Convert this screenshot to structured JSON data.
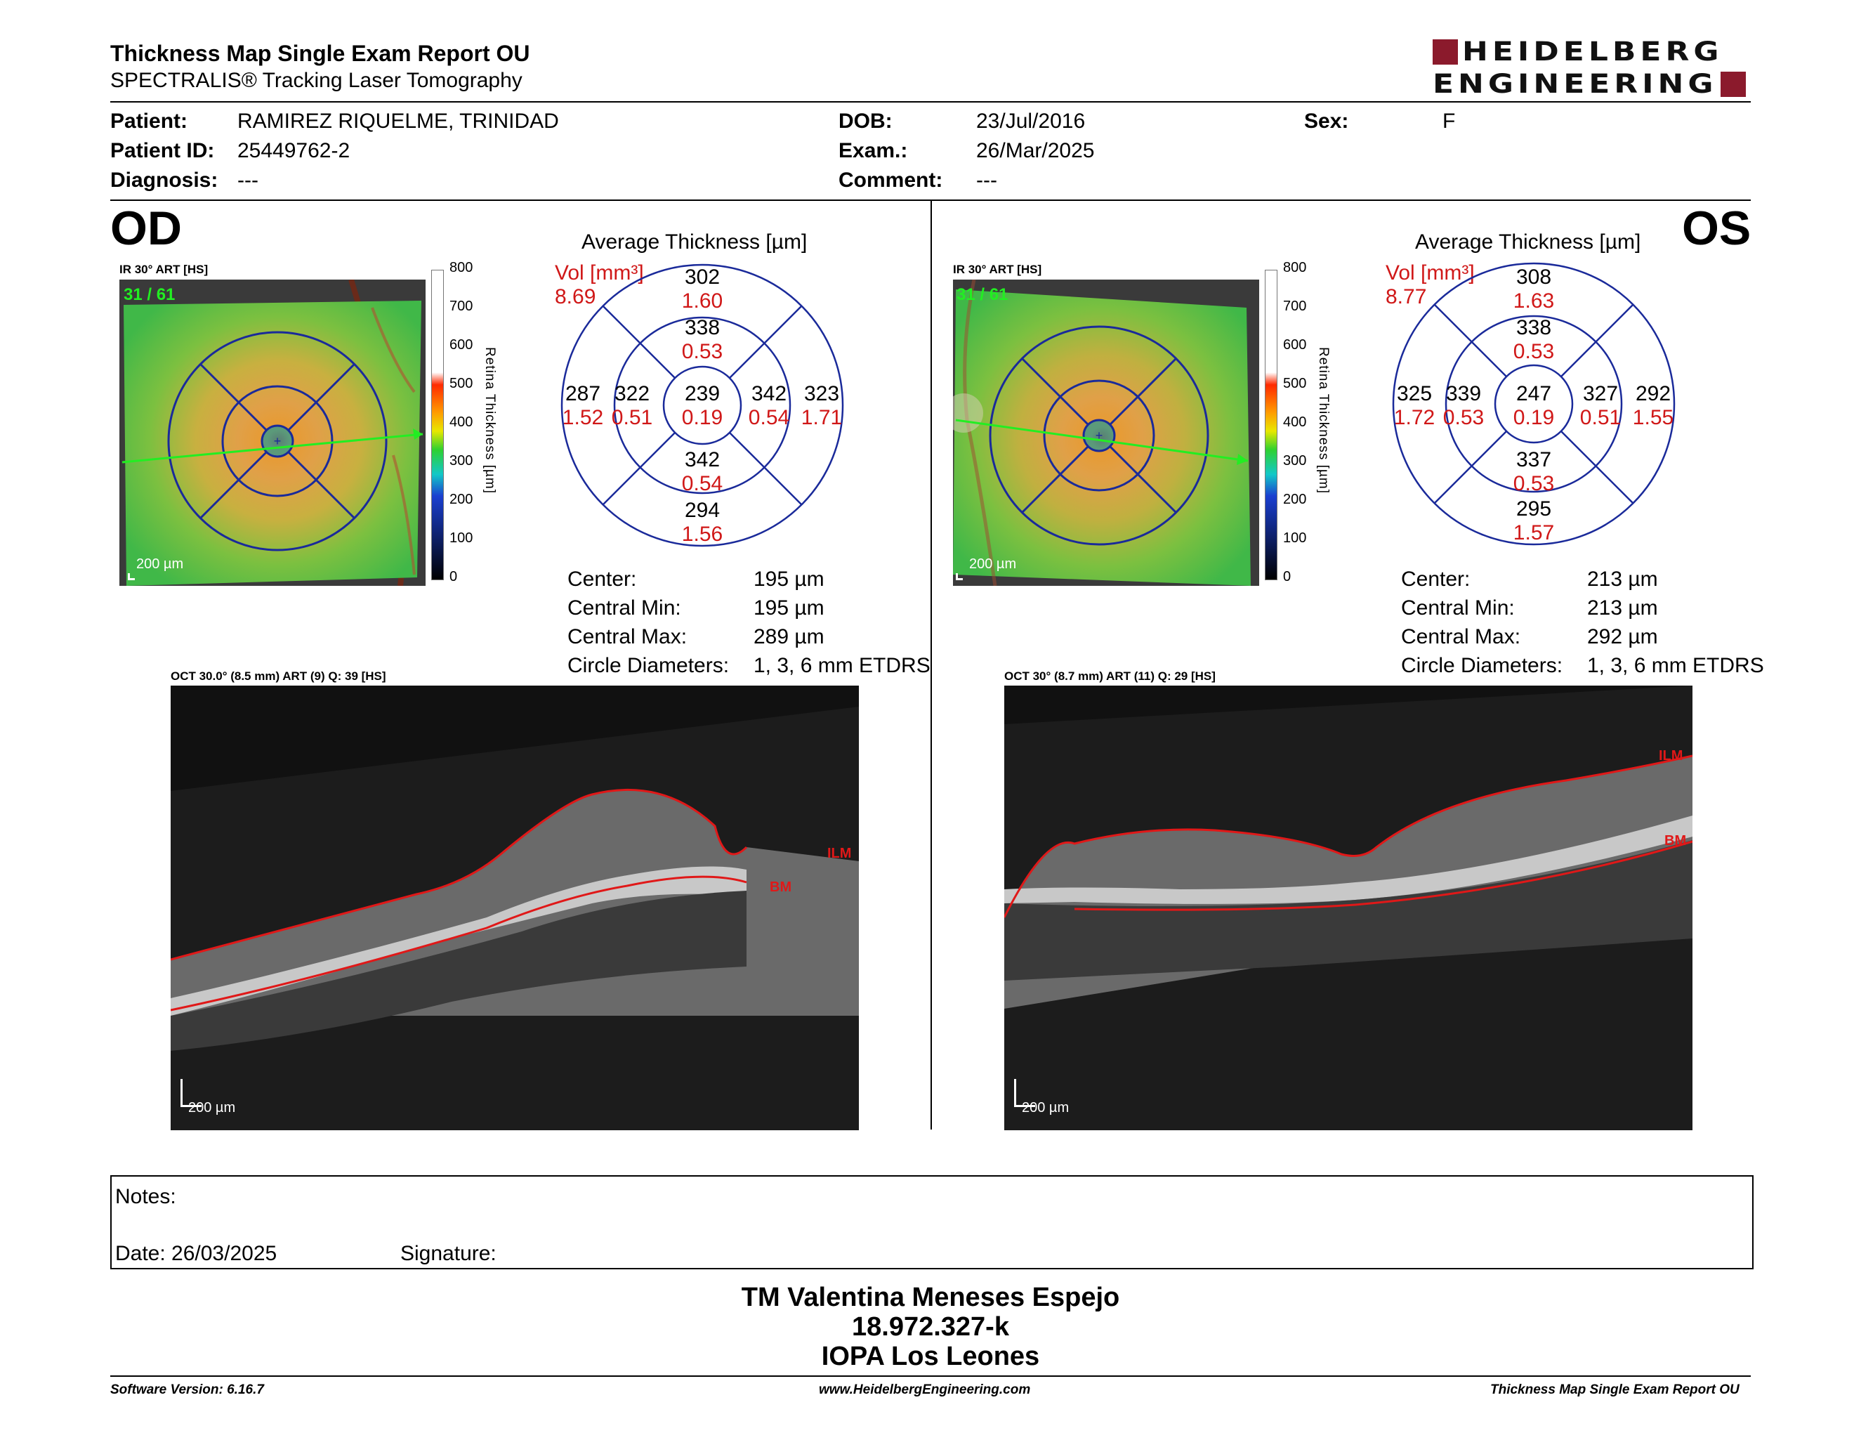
{
  "header": {
    "title": "Thickness Map Single Exam Report OU",
    "subtitle": "SPECTRALIS® Tracking Laser Tomography",
    "logo_line1": "HEIDELBERG",
    "logo_line2": "ENGINEERING"
  },
  "patient": {
    "patient_label": "Patient:",
    "patient_value": "RAMIREZ RIQUELME, TRINIDAD",
    "id_label": "Patient ID:",
    "id_value": "25449762-2",
    "diag_label": "Diagnosis:",
    "diag_value": "---",
    "dob_label": "DOB:",
    "dob_value": "23/Jul/2016",
    "exam_label": "Exam.:",
    "exam_value": "26/Mar/2025",
    "comment_label": "Comment:",
    "comment_value": "---",
    "sex_label": "Sex:",
    "sex_value": "F"
  },
  "od": {
    "eye": "OD",
    "ir_label": "IR 30° ART [HS]",
    "frame": "31 / 61",
    "scale_bar": "200 µm",
    "avg_title": "Average Thickness [µm]",
    "vol_label": "Vol [mm³]",
    "vol_value": "8.69",
    "sectors": {
      "superior_outer": [
        "302",
        "1.60"
      ],
      "superior_inner": [
        "338",
        "0.53"
      ],
      "center": [
        "239",
        "0.19"
      ],
      "temporal_outer": [
        "287",
        "1.52"
      ],
      "temporal_inner": [
        "322",
        "0.51"
      ],
      "nasal_inner": [
        "342",
        "0.54"
      ],
      "nasal_outer": [
        "323",
        "1.71"
      ],
      "inferior_inner": [
        "342",
        "0.54"
      ],
      "inferior_outer": [
        "294",
        "1.56"
      ]
    },
    "stats": [
      {
        "label": "Center:",
        "value": "195 µm"
      },
      {
        "label": "Central Min:",
        "value": "195 µm"
      },
      {
        "label": "Central Max:",
        "value": "289 µm"
      },
      {
        "label": "Circle Diameters:",
        "value": "1, 3, 6 mm ETDRS"
      }
    ],
    "oct_label": "OCT 30.0° (8.5 mm) ART (9) Q: 39 [HS]",
    "oct_scale": "200 µm",
    "ilm": "ILM",
    "bm": "BM"
  },
  "os": {
    "eye": "OS",
    "ir_label": "IR 30° ART [HS]",
    "frame": "31 / 61",
    "scale_bar": "200 µm",
    "avg_title": "Average Thickness [µm]",
    "vol_label": "Vol [mm³]",
    "vol_value": "8.77",
    "sectors": {
      "superior_outer": [
        "308",
        "1.63"
      ],
      "superior_inner": [
        "338",
        "0.53"
      ],
      "center": [
        "247",
        "0.19"
      ],
      "nasal_outer": [
        "325",
        "1.72"
      ],
      "nasal_inner": [
        "339",
        "0.53"
      ],
      "temporal_inner": [
        "327",
        "0.51"
      ],
      "temporal_outer": [
        "292",
        "1.55"
      ],
      "inferior_inner": [
        "337",
        "0.53"
      ],
      "inferior_outer": [
        "295",
        "1.57"
      ]
    },
    "stats": [
      {
        "label": "Center:",
        "value": "213 µm"
      },
      {
        "label": "Central Min:",
        "value": "213 µm"
      },
      {
        "label": "Central Max:",
        "value": "292 µm"
      },
      {
        "label": "Circle Diameters:",
        "value": "1, 3, 6 mm ETDRS"
      }
    ],
    "oct_label": "OCT 30° (8.7 mm) ART (11) Q: 29 [HS]",
    "oct_scale": "200 µm",
    "ilm": "ILM",
    "bm": "BM"
  },
  "colorbar": {
    "ticks": [
      "800",
      "700",
      "600",
      "500",
      "400",
      "300",
      "200",
      "100",
      "0"
    ],
    "label": "Retina Thickness [µm]"
  },
  "notes": {
    "notes_label": "Notes:",
    "date_label": "Date: 26/03/2025",
    "signature_label": "Signature:"
  },
  "signer": {
    "name": "TM Valentina Meneses Espejo",
    "rut": "18.972.327-k",
    "institution": "IOPA Los Leones"
  },
  "footer": {
    "version": "Software Version: 6.16.7",
    "url": "www.HeidelbergEngineering.com",
    "report": "Thickness Map Single Exam Report OU"
  }
}
